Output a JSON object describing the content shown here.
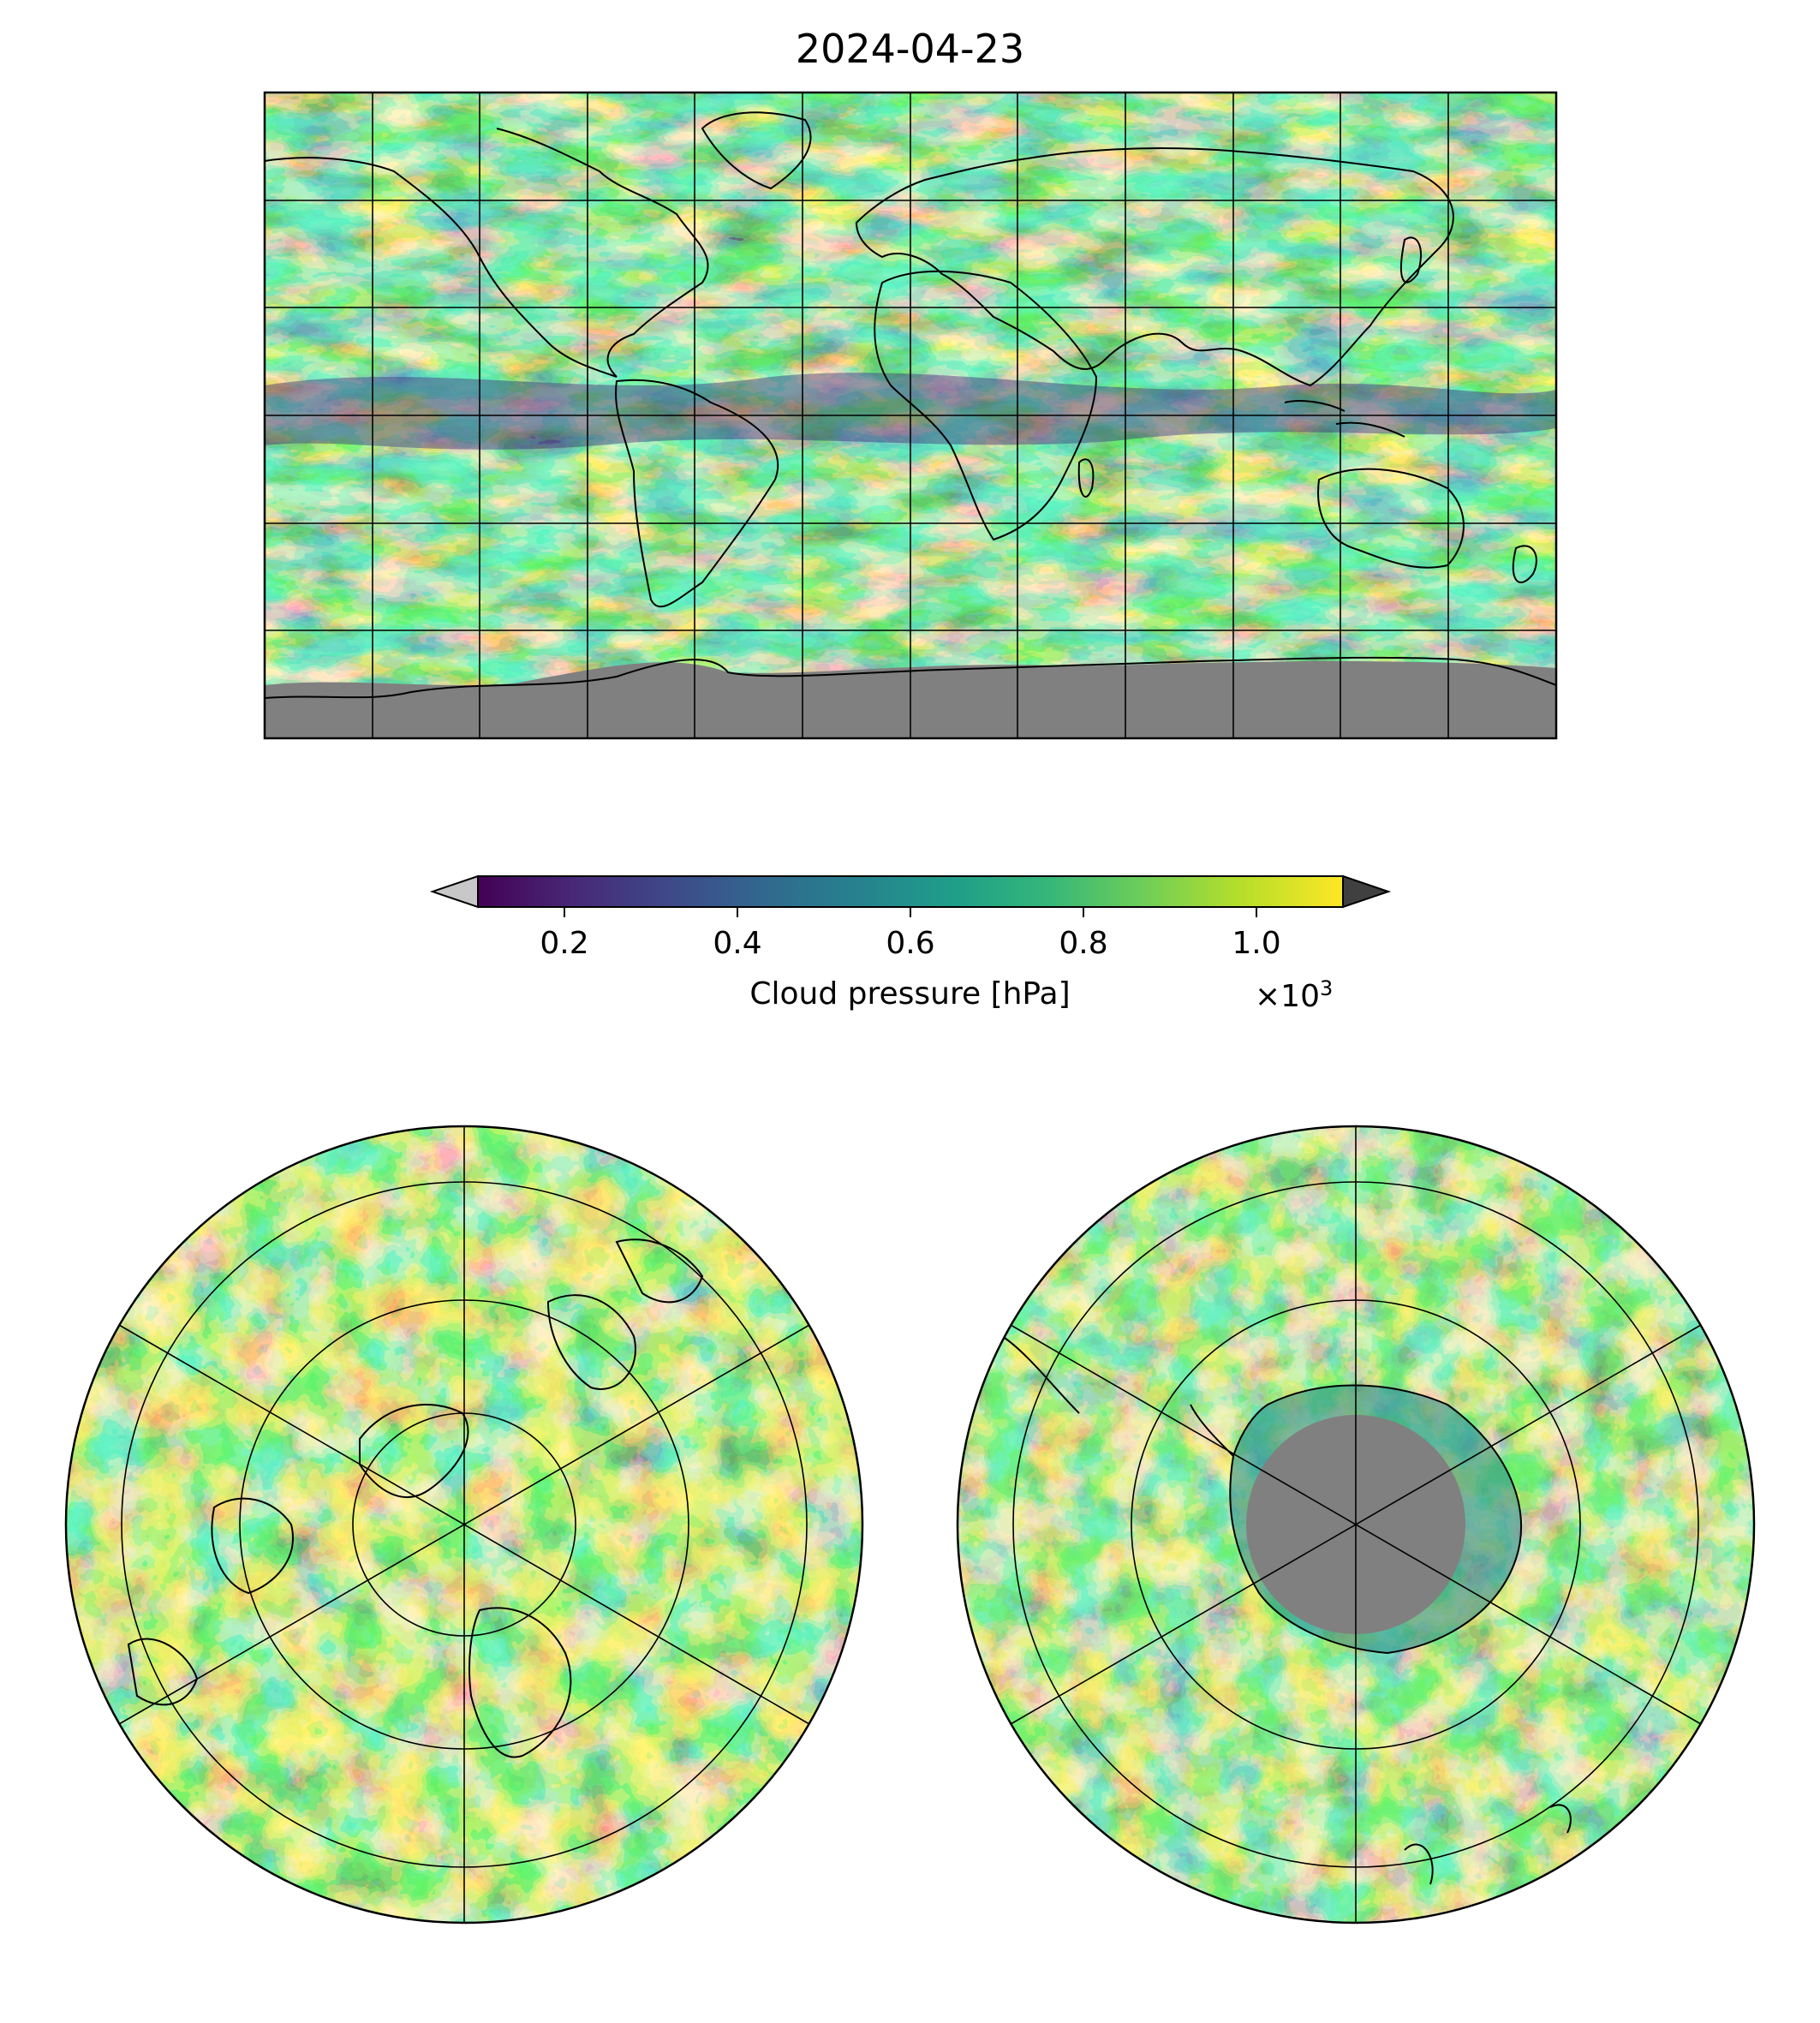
{
  "title": "2024-04-23",
  "colorbar": {
    "label": "Cloud pressure [hPa]",
    "multiplier_base": "×10",
    "multiplier_exp": "3",
    "ticks": [
      {
        "value": 0.2,
        "label": "0.2"
      },
      {
        "value": 0.4,
        "label": "0.4"
      },
      {
        "value": 0.6,
        "label": "0.6"
      },
      {
        "value": 0.8,
        "label": "0.8"
      },
      {
        "value": 1.0,
        "label": "1.0"
      }
    ],
    "range": [
      0.1,
      1.1
    ],
    "colormap": "viridis",
    "extend_min_color": "#c8c8c8",
    "extend_max_color": "#404040",
    "colors": [
      "#440154",
      "#482878",
      "#3e4989",
      "#31688e",
      "#26828e",
      "#1f9e89",
      "#35b779",
      "#6ece58",
      "#b5de2b",
      "#fde725"
    ]
  },
  "maps": {
    "global": {
      "projection": "plate-carree",
      "gridlines": "30 degree",
      "missing_color": "#808080"
    },
    "north_polar": {
      "projection": "north-polar-stereographic"
    },
    "south_polar": {
      "projection": "south-polar-stereographic",
      "missing_color": "#808080"
    }
  }
}
